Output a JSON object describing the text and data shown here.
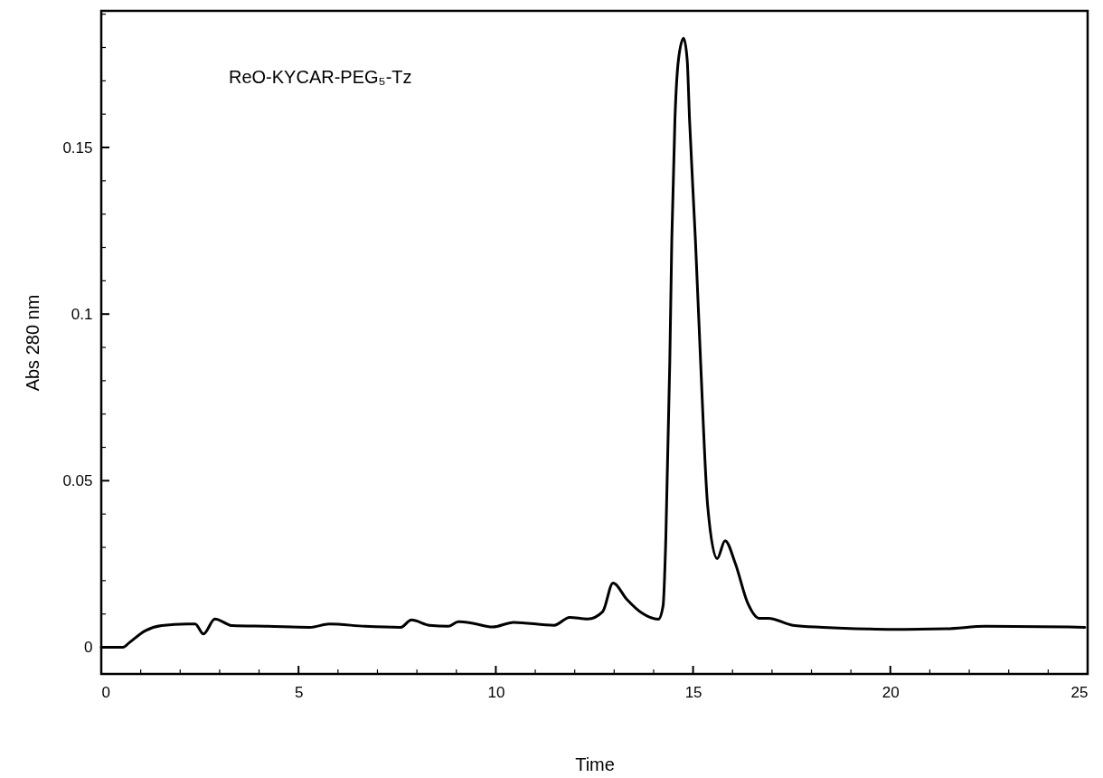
{
  "chart_data": {
    "type": "line",
    "xlabel": "Time",
    "ylabel": "Abs 280 nm",
    "annotations": [
      "ReO-KYCAR-PEG₅-Tz"
    ],
    "xlim": [
      0,
      25
    ],
    "ylim": [
      -0.008,
      0.191
    ],
    "xticks": [
      0,
      {
        "value": 1,
        "label": null
      },
      {
        "value": 2,
        "label": null
      },
      {
        "value": 3,
        "label": null
      },
      {
        "value": 4,
        "label": null
      },
      5,
      {
        "value": 6,
        "label": null
      },
      {
        "value": 7,
        "label": null
      },
      {
        "value": 8,
        "label": null
      },
      {
        "value": 9,
        "label": null
      },
      10,
      {
        "value": 11,
        "label": null
      },
      {
        "value": 12,
        "label": null
      },
      {
        "value": 13,
        "label": null
      },
      {
        "value": 14,
        "label": null
      },
      15,
      {
        "value": 16,
        "label": null
      },
      {
        "value": 17,
        "label": null
      },
      {
        "value": 18,
        "label": null
      },
      {
        "value": 19,
        "label": null
      },
      20,
      {
        "value": 21,
        "label": null
      },
      {
        "value": 22,
        "label": null
      },
      {
        "value": 23,
        "label": null
      },
      {
        "value": 24,
        "label": null
      },
      25
    ],
    "yticks": [
      0,
      {
        "value": 0.01,
        "label": null
      },
      {
        "value": 0.02,
        "label": null
      },
      {
        "value": 0.03,
        "label": null
      },
      {
        "value": 0.04,
        "label": null
      },
      0.05,
      {
        "value": 0.06,
        "label": null
      },
      {
        "value": 0.07,
        "label": null
      },
      {
        "value": 0.08,
        "label": null
      },
      {
        "value": 0.09,
        "label": null
      },
      0.1,
      {
        "value": 0.11,
        "label": null
      },
      {
        "value": 0.12,
        "label": null
      },
      {
        "value": 0.13,
        "label": null
      },
      {
        "value": 0.14,
        "label": null
      },
      0.15,
      {
        "value": 0.16,
        "label": null
      },
      {
        "value": 0.17,
        "label": null
      },
      {
        "value": 0.18,
        "label": null
      },
      {
        "value": 0.19,
        "label": null
      }
    ],
    "grid": false,
    "marker": "none",
    "line_style": "solid",
    "series": [
      {
        "color": "#000000",
        "x": [
          0,
          0.55,
          0.71,
          1.12,
          1.53,
          2.18,
          2.38,
          2.59,
          2.88,
          3.32,
          4.22,
          5.29,
          5.78,
          6.69,
          7.59,
          7.86,
          8.32,
          8.8,
          9.05,
          9.38,
          9.92,
          10.45,
          11.48,
          11.87,
          12.33,
          12.71,
          12.97,
          13.32,
          13.7,
          14.12,
          14.24,
          14.31,
          14.41,
          14.46,
          14.54,
          14.63,
          14.76,
          14.85,
          14.91,
          15.06,
          15.19,
          15.37,
          15.61,
          15.81,
          16.07,
          16.38,
          16.68,
          16.91,
          17.53,
          18.29,
          19.43,
          19.96,
          21.42,
          22.41,
          24.93
        ],
        "values": [
          0.0,
          0.0,
          0.0014,
          0.005,
          0.0065,
          0.007,
          0.007,
          0.004,
          0.0085,
          0.0065,
          0.0063,
          0.006,
          0.007,
          0.0063,
          0.006,
          0.0082,
          0.0066,
          0.0063,
          0.0077,
          0.0073,
          0.0061,
          0.0075,
          0.0066,
          0.009,
          0.0085,
          0.0107,
          0.0193,
          0.0144,
          0.0103,
          0.0084,
          0.0125,
          0.033,
          0.0859,
          0.122,
          0.1584,
          0.1764,
          0.1828,
          0.1764,
          0.1584,
          0.122,
          0.0859,
          0.0424,
          0.0266,
          0.032,
          0.0252,
          0.0134,
          0.0087,
          0.0087,
          0.0066,
          0.006,
          0.0055,
          0.0054,
          0.0056,
          0.0063,
          0.006
        ]
      }
    ]
  }
}
